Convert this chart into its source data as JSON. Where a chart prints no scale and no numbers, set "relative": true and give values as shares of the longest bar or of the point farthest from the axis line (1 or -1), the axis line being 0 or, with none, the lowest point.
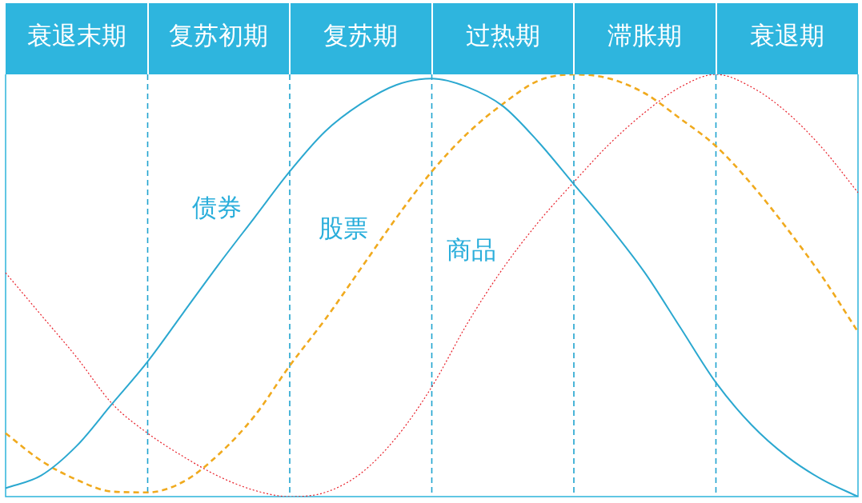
{
  "chart_data": {
    "type": "line",
    "relative": true,
    "grid": "x",
    "categories": [
      null,
      null,
      "衰退末期",
      null,
      null,
      null,
      "复苏初期",
      null,
      null,
      null,
      "复苏期",
      null,
      null,
      null,
      "过热期",
      null,
      null,
      null,
      "滞胀期",
      null,
      null,
      null,
      "衰退期",
      null,
      null
    ],
    "series": [
      {
        "name": "债券",
        "color": "#2ba8d0",
        "line_style": "solid",
        "values": [
          0.02,
          0.05,
          0.12,
          0.22,
          0.32,
          0.435,
          0.55,
          0.66,
          0.77,
          0.865,
          0.93,
          0.975,
          0.99,
          0.97,
          0.925,
          0.84,
          0.74,
          0.64,
          0.53,
          0.4,
          0.27,
          0.17,
          0.095,
          0.04,
          0.0
        ]
      },
      {
        "name": "股票",
        "color": "#f0aa1e",
        "line_style": "dashed",
        "values": [
          0.15,
          0.085,
          0.04,
          0.012,
          0.01,
          0.035,
          0.1,
          0.19,
          0.31,
          0.42,
          0.54,
          0.66,
          0.77,
          0.86,
          0.93,
          0.985,
          1.0,
          0.99,
          0.955,
          0.895,
          0.83,
          0.74,
          0.635,
          0.52,
          0.39
        ]
      },
      {
        "name": "商品",
        "color": "#e8202a",
        "line_style": "dotted",
        "values": [
          0.53,
          0.43,
          0.33,
          0.22,
          0.15,
          0.095,
          0.048,
          0.015,
          0.0,
          0.01,
          0.055,
          0.14,
          0.26,
          0.41,
          0.54,
          0.65,
          0.745,
          0.835,
          0.91,
          0.97,
          1.0,
          0.97,
          0.91,
          0.825,
          0.72
        ]
      }
    ]
  }
}
